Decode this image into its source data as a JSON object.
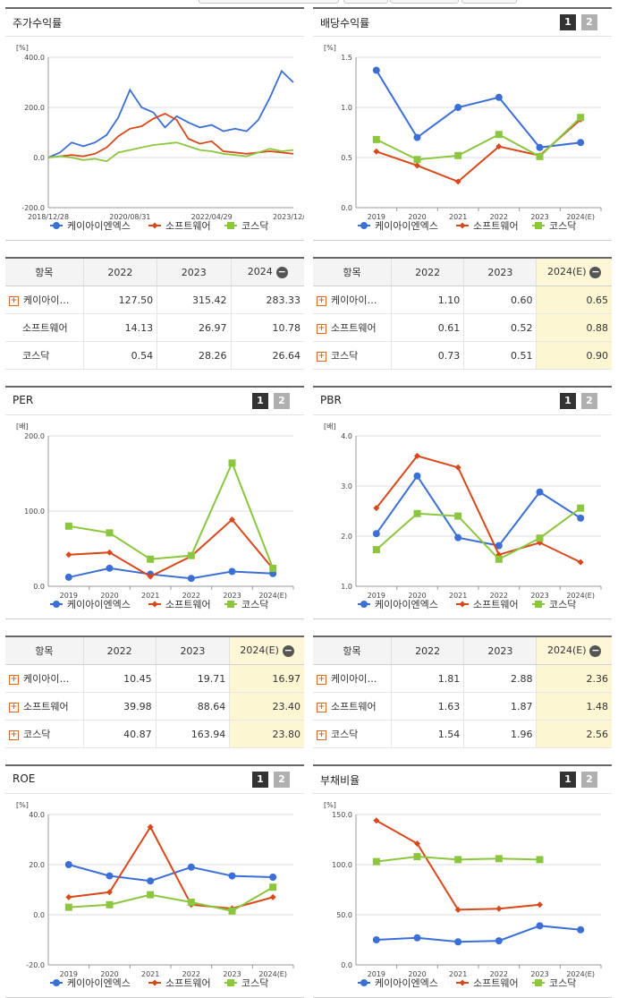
{
  "colors": {
    "kai": "#3B6FD6",
    "soft": "#D9481A",
    "kosdaq": "#8CC63F"
  },
  "legend": [
    "케이아이엔엑스",
    "소프트웨어",
    "코스닥"
  ],
  "panels": {
    "stock": {
      "title": "주가수익률"
    },
    "div": {
      "title": "배당수익률",
      "pages": [
        "1",
        "2"
      ]
    },
    "per": {
      "title": "PER",
      "pages": [
        "1",
        "2"
      ]
    },
    "pbr": {
      "title": "PBR",
      "pages": [
        "1",
        "2"
      ]
    },
    "roe": {
      "title": "ROE",
      "pages": [
        "1",
        "2"
      ]
    },
    "debt": {
      "title": "부채비율",
      "pages": [
        "1",
        "2"
      ]
    }
  },
  "tables": {
    "stock": {
      "header": [
        "항목",
        "2022",
        "2023",
        "2024"
      ],
      "rows": [
        {
          "name": "케이아이…",
          "expand": true,
          "values": [
            "127.50",
            "315.42",
            "283.33"
          ]
        },
        {
          "name": "소프트웨어",
          "expand": false,
          "values": [
            "14.13",
            "26.97",
            "10.78"
          ]
        },
        {
          "name": "코스닥",
          "expand": false,
          "values": [
            "0.54",
            "28.26",
            "26.64"
          ]
        }
      ]
    },
    "div": {
      "header": [
        "항목",
        "2022",
        "2023",
        "2024(E)"
      ],
      "rows": [
        {
          "name": "케이아이…",
          "expand": true,
          "values": [
            "1.10",
            "0.60",
            "0.65"
          ]
        },
        {
          "name": "소프트웨어",
          "expand": true,
          "values": [
            "0.61",
            "0.52",
            "0.88"
          ]
        },
        {
          "name": "코스닥",
          "expand": true,
          "values": [
            "0.73",
            "0.51",
            "0.90"
          ]
        }
      ]
    },
    "per": {
      "header": [
        "항목",
        "2022",
        "2023",
        "2024(E)"
      ],
      "rows": [
        {
          "name": "케이아이…",
          "expand": true,
          "values": [
            "10.45",
            "19.71",
            "16.97"
          ]
        },
        {
          "name": "소프트웨어",
          "expand": true,
          "values": [
            "39.98",
            "88.64",
            "23.40"
          ]
        },
        {
          "name": "코스닥",
          "expand": true,
          "values": [
            "40.87",
            "163.94",
            "23.80"
          ]
        }
      ]
    },
    "pbr": {
      "header": [
        "항목",
        "2022",
        "2023",
        "2024(E)"
      ],
      "rows": [
        {
          "name": "케이아이…",
          "expand": true,
          "values": [
            "1.81",
            "2.88",
            "2.36"
          ]
        },
        {
          "name": "소프트웨어",
          "expand": true,
          "values": [
            "1.63",
            "1.87",
            "1.48"
          ]
        },
        {
          "name": "코스닥",
          "expand": true,
          "values": [
            "1.54",
            "1.96",
            "2.56"
          ]
        }
      ]
    }
  },
  "chart_data": [
    {
      "id": "stock",
      "type": "line",
      "unit": "[%]",
      "x_ticks": [
        "2018/12/28",
        "2020/08/31",
        "2022/04/29",
        "2023/12/28"
      ],
      "ylim": [
        -200,
        400
      ],
      "yticks": [
        "400.0",
        "200.0",
        "0.0",
        "-200.0"
      ],
      "x": [
        "2018/12/28",
        "2019/03",
        "2019/06",
        "2019/09",
        "2019/12",
        "2020/03",
        "2020/06",
        "2020/08/31",
        "2020/11",
        "2021/02",
        "2021/05",
        "2021/08",
        "2021/11",
        "2022/02",
        "2022/04/29",
        "2022/07",
        "2022/10",
        "2023/01",
        "2023/04",
        "2023/07",
        "2023/10",
        "2023/12/28"
      ],
      "series": [
        {
          "name": "케이아이엔엑스",
          "values": [
            0,
            20,
            60,
            45,
            60,
            90,
            160,
            270,
            200,
            180,
            120,
            165,
            140,
            120,
            130,
            105,
            115,
            105,
            150,
            240,
            345,
            300
          ]
        },
        {
          "name": "소프트웨어",
          "values": [
            0,
            5,
            10,
            5,
            15,
            40,
            85,
            115,
            125,
            155,
            175,
            150,
            75,
            55,
            65,
            25,
            20,
            15,
            20,
            25,
            20,
            15
          ]
        },
        {
          "name": "코스닥",
          "values": [
            0,
            5,
            0,
            -10,
            -5,
            -15,
            20,
            30,
            40,
            50,
            55,
            60,
            45,
            30,
            25,
            15,
            10,
            5,
            20,
            35,
            25,
            30
          ]
        }
      ]
    },
    {
      "id": "div",
      "type": "line",
      "unit": "[%]",
      "categories": [
        "2019",
        "2020",
        "2021",
        "2022",
        "2023",
        "2024(E)"
      ],
      "ylim": [
        0,
        1.5
      ],
      "yticks": [
        "1.5",
        "1.0",
        "0.5",
        "0.0"
      ],
      "series": [
        {
          "name": "케이아이엔엑스",
          "values": [
            1.37,
            0.7,
            1.0,
            1.1,
            0.6,
            0.65
          ]
        },
        {
          "name": "소프트웨어",
          "values": [
            0.56,
            0.42,
            0.26,
            0.61,
            0.52,
            0.88
          ]
        },
        {
          "name": "코스닥",
          "values": [
            0.68,
            0.48,
            0.52,
            0.73,
            0.51,
            0.9
          ]
        }
      ]
    },
    {
      "id": "per",
      "type": "line",
      "unit": "[배]",
      "categories": [
        "2019",
        "2020",
        "2021",
        "2022",
        "2023",
        "2024(E)"
      ],
      "ylim": [
        0,
        200
      ],
      "yticks": [
        "200.0",
        "100.0",
        "0.0"
      ],
      "series": [
        {
          "name": "케이아이엔엑스",
          "values": [
            12.0,
            24.0,
            16.0,
            10.45,
            19.71,
            16.97
          ]
        },
        {
          "name": "소프트웨어",
          "values": [
            42.0,
            45.0,
            13.0,
            39.98,
            88.64,
            23.4
          ]
        },
        {
          "name": "코스닥",
          "values": [
            80.0,
            71.0,
            36.0,
            40.87,
            163.94,
            23.8
          ]
        }
      ]
    },
    {
      "id": "pbr",
      "type": "line",
      "unit": "[배]",
      "categories": [
        "2019",
        "2020",
        "2021",
        "2022",
        "2023",
        "2024(E)"
      ],
      "ylim": [
        1,
        4
      ],
      "yticks": [
        "4.0",
        "3.0",
        "2.0",
        "1.0"
      ],
      "series": [
        {
          "name": "케이아이엔엑스",
          "values": [
            2.05,
            3.2,
            1.97,
            1.81,
            2.88,
            2.36
          ]
        },
        {
          "name": "소프트웨어",
          "values": [
            2.56,
            3.6,
            3.37,
            1.63,
            1.87,
            1.48
          ]
        },
        {
          "name": "코스닥",
          "values": [
            1.73,
            2.45,
            2.4,
            1.54,
            1.96,
            2.56
          ]
        }
      ]
    },
    {
      "id": "roe",
      "type": "line",
      "unit": "[%]",
      "categories": [
        "2019",
        "2020",
        "2021",
        "2022",
        "2023",
        "2024(E)"
      ],
      "ylim": [
        -20,
        40
      ],
      "yticks": [
        "40.0",
        "20.0",
        "0.0",
        "-20.0"
      ],
      "series": [
        {
          "name": "케이아이엔엑스",
          "values": [
            20.0,
            15.5,
            13.5,
            19.0,
            15.5,
            15.0
          ]
        },
        {
          "name": "소프트웨어",
          "values": [
            7.0,
            9.0,
            35.0,
            4.0,
            2.5,
            7.0
          ]
        },
        {
          "name": "코스닥",
          "values": [
            3.0,
            4.0,
            8.0,
            5.0,
            1.5,
            11.0
          ]
        }
      ]
    },
    {
      "id": "debt",
      "type": "line",
      "unit": "[%]",
      "categories": [
        "2019",
        "2020",
        "2021",
        "2022",
        "2023",
        "2024(E)"
      ],
      "ylim": [
        0,
        150
      ],
      "yticks": [
        "150.0",
        "100.0",
        "50.0",
        "0.0"
      ],
      "series": [
        {
          "name": "케이아이엔엑스",
          "values": [
            25.0,
            27.0,
            23.0,
            24.0,
            39.0,
            35.0
          ]
        },
        {
          "name": "소프트웨어",
          "values": [
            144.0,
            121.0,
            55.0,
            56.0,
            60.0,
            null
          ]
        },
        {
          "name": "코스닥",
          "values": [
            103.0,
            108.0,
            105.0,
            106.0,
            105.0,
            null
          ]
        }
      ]
    }
  ]
}
